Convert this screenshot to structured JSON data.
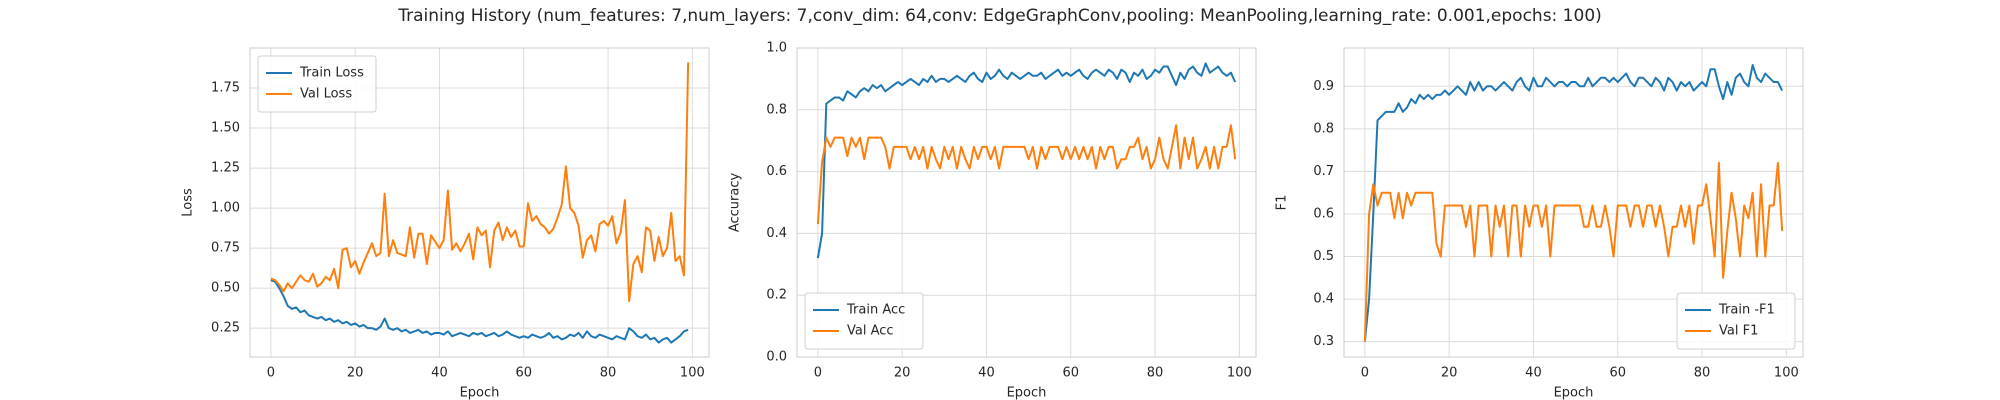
{
  "title": "Training History (num_features: 7,num_layers: 7,conv_dim: 64,conv: EdgeGraphConv,pooling: MeanPooling,learning_rate: 0.001,epochs: 100)",
  "chart_data": [
    {
      "type": "line",
      "xlabel": "Epoch",
      "ylabel": "Loss",
      "legend": "upper left",
      "grid": true,
      "xlim": [
        -4.95,
        103.95
      ],
      "xticks": [
        0,
        20,
        40,
        60,
        80,
        100
      ],
      "ylim": [
        0.07,
        2.0
      ],
      "yticks": [
        0.25,
        {
          "value": 0.5,
          "label": "0.50"
        },
        0.75,
        {
          "value": 1.0,
          "label": "1.00"
        },
        1.25,
        {
          "value": 1.5,
          "label": "1.50"
        },
        1.75
      ],
      "x": [
        0,
        1,
        2,
        3,
        4,
        5,
        6,
        7,
        8,
        9,
        10,
        11,
        12,
        13,
        14,
        15,
        16,
        17,
        18,
        19,
        20,
        21,
        22,
        23,
        24,
        25,
        26,
        27,
        28,
        29,
        30,
        31,
        32,
        33,
        34,
        35,
        36,
        37,
        38,
        39,
        40,
        41,
        42,
        43,
        44,
        45,
        46,
        47,
        48,
        49,
        50,
        51,
        52,
        53,
        54,
        55,
        56,
        57,
        58,
        59,
        60,
        61,
        62,
        63,
        64,
        65,
        66,
        67,
        68,
        69,
        70,
        71,
        72,
        73,
        74,
        75,
        76,
        77,
        78,
        79,
        80,
        81,
        82,
        83,
        84,
        85,
        86,
        87,
        88,
        89,
        90,
        91,
        92,
        93,
        94,
        95,
        96,
        97,
        98,
        99
      ],
      "series": [
        {
          "name": "Train Loss",
          "color": "#1f77b4",
          "values": [
            0.55,
            0.54,
            0.5,
            0.45,
            0.39,
            0.37,
            0.38,
            0.35,
            0.36,
            0.33,
            0.32,
            0.31,
            0.32,
            0.3,
            0.31,
            0.29,
            0.3,
            0.28,
            0.29,
            0.27,
            0.28,
            0.26,
            0.27,
            0.25,
            0.25,
            0.24,
            0.26,
            0.31,
            0.25,
            0.24,
            0.25,
            0.23,
            0.24,
            0.22,
            0.23,
            0.24,
            0.22,
            0.23,
            0.21,
            0.22,
            0.22,
            0.21,
            0.23,
            0.2,
            0.21,
            0.22,
            0.21,
            0.2,
            0.22,
            0.21,
            0.22,
            0.2,
            0.21,
            0.22,
            0.2,
            0.21,
            0.23,
            0.21,
            0.2,
            0.19,
            0.2,
            0.19,
            0.21,
            0.2,
            0.19,
            0.2,
            0.22,
            0.19,
            0.2,
            0.18,
            0.19,
            0.21,
            0.2,
            0.22,
            0.19,
            0.23,
            0.2,
            0.19,
            0.21,
            0.2,
            0.19,
            0.18,
            0.2,
            0.19,
            0.18,
            0.25,
            0.23,
            0.2,
            0.19,
            0.21,
            0.18,
            0.19,
            0.16,
            0.18,
            0.19,
            0.16,
            0.18,
            0.2,
            0.23,
            0.24
          ]
        },
        {
          "name": "Val Loss",
          "color": "#ff7f0e",
          "values": [
            0.56,
            0.55,
            0.52,
            0.48,
            0.53,
            0.5,
            0.54,
            0.58,
            0.55,
            0.54,
            0.59,
            0.51,
            0.53,
            0.57,
            0.55,
            0.62,
            0.5,
            0.74,
            0.75,
            0.63,
            0.67,
            0.59,
            0.66,
            0.72,
            0.78,
            0.7,
            0.72,
            1.09,
            0.7,
            0.8,
            0.72,
            0.71,
            0.7,
            0.88,
            0.69,
            0.84,
            0.84,
            0.65,
            0.83,
            0.79,
            0.75,
            0.8,
            1.11,
            0.74,
            0.78,
            0.73,
            0.78,
            0.84,
            0.68,
            0.88,
            0.83,
            0.86,
            0.63,
            0.86,
            0.91,
            0.8,
            0.88,
            0.82,
            0.86,
            0.76,
            0.76,
            1.03,
            0.92,
            0.95,
            0.9,
            0.88,
            0.84,
            0.87,
            0.94,
            1.02,
            1.26,
            1.0,
            0.97,
            0.89,
            0.69,
            0.8,
            0.83,
            0.73,
            0.9,
            0.92,
            0.89,
            0.95,
            0.78,
            0.85,
            1.05,
            0.42,
            0.65,
            0.7,
            0.6,
            0.88,
            0.86,
            0.67,
            0.82,
            0.7,
            0.75,
            0.97,
            0.67,
            0.7,
            0.58,
            1.91
          ]
        }
      ]
    },
    {
      "type": "line",
      "xlabel": "Epoch",
      "ylabel": "Accuracy",
      "legend": "lower left",
      "grid": true,
      "xlim": [
        -4.95,
        103.95
      ],
      "xticks": [
        0,
        20,
        40,
        60,
        80,
        100
      ],
      "ylim": [
        0,
        1
      ],
      "yticks": [
        {
          "value": 0,
          "label": "0.0"
        },
        0.2,
        0.4,
        0.6,
        0.8,
        {
          "value": 1,
          "label": "1.0"
        }
      ],
      "x": [
        0,
        1,
        2,
        3,
        4,
        5,
        6,
        7,
        8,
        9,
        10,
        11,
        12,
        13,
        14,
        15,
        16,
        17,
        18,
        19,
        20,
        21,
        22,
        23,
        24,
        25,
        26,
        27,
        28,
        29,
        30,
        31,
        32,
        33,
        34,
        35,
        36,
        37,
        38,
        39,
        40,
        41,
        42,
        43,
        44,
        45,
        46,
        47,
        48,
        49,
        50,
        51,
        52,
        53,
        54,
        55,
        56,
        57,
        58,
        59,
        60,
        61,
        62,
        63,
        64,
        65,
        66,
        67,
        68,
        69,
        70,
        71,
        72,
        73,
        74,
        75,
        76,
        77,
        78,
        79,
        80,
        81,
        82,
        83,
        84,
        85,
        86,
        87,
        88,
        89,
        90,
        91,
        92,
        93,
        94,
        95,
        96,
        97,
        98,
        99
      ],
      "series": [
        {
          "name": "Train Acc",
          "color": "#1f77b4",
          "values": [
            0.32,
            0.4,
            0.82,
            0.83,
            0.84,
            0.84,
            0.83,
            0.86,
            0.85,
            0.84,
            0.86,
            0.87,
            0.86,
            0.88,
            0.87,
            0.88,
            0.86,
            0.87,
            0.88,
            0.89,
            0.88,
            0.89,
            0.9,
            0.89,
            0.88,
            0.9,
            0.89,
            0.91,
            0.89,
            0.9,
            0.9,
            0.89,
            0.9,
            0.91,
            0.9,
            0.89,
            0.91,
            0.92,
            0.9,
            0.89,
            0.92,
            0.9,
            0.91,
            0.93,
            0.91,
            0.9,
            0.92,
            0.91,
            0.9,
            0.91,
            0.92,
            0.91,
            0.91,
            0.92,
            0.9,
            0.91,
            0.92,
            0.93,
            0.91,
            0.92,
            0.91,
            0.92,
            0.93,
            0.91,
            0.9,
            0.92,
            0.93,
            0.92,
            0.91,
            0.93,
            0.92,
            0.9,
            0.93,
            0.92,
            0.89,
            0.92,
            0.91,
            0.93,
            0.9,
            0.91,
            0.93,
            0.92,
            0.94,
            0.94,
            0.91,
            0.88,
            0.92,
            0.9,
            0.93,
            0.94,
            0.92,
            0.91,
            0.95,
            0.92,
            0.93,
            0.94,
            0.92,
            0.91,
            0.92,
            0.89
          ]
        },
        {
          "name": "Val Acc",
          "color": "#ff7f0e",
          "values": [
            0.43,
            0.63,
            0.71,
            0.68,
            0.71,
            0.71,
            0.71,
            0.65,
            0.71,
            0.68,
            0.71,
            0.64,
            0.71,
            0.71,
            0.71,
            0.71,
            0.68,
            0.61,
            0.68,
            0.68,
            0.68,
            0.68,
            0.64,
            0.68,
            0.64,
            0.68,
            0.61,
            0.68,
            0.64,
            0.61,
            0.68,
            0.64,
            0.68,
            0.61,
            0.68,
            0.64,
            0.61,
            0.68,
            0.64,
            0.68,
            0.68,
            0.64,
            0.68,
            0.61,
            0.68,
            0.68,
            0.68,
            0.68,
            0.68,
            0.68,
            0.64,
            0.68,
            0.61,
            0.68,
            0.64,
            0.68,
            0.68,
            0.68,
            0.64,
            0.68,
            0.64,
            0.68,
            0.64,
            0.68,
            0.64,
            0.68,
            0.61,
            0.68,
            0.64,
            0.68,
            0.68,
            0.61,
            0.64,
            0.64,
            0.68,
            0.68,
            0.71,
            0.64,
            0.68,
            0.61,
            0.64,
            0.71,
            0.64,
            0.61,
            0.68,
            0.75,
            0.61,
            0.71,
            0.64,
            0.71,
            0.61,
            0.64,
            0.68,
            0.61,
            0.68,
            0.61,
            0.68,
            0.68,
            0.75,
            0.64
          ]
        }
      ]
    },
    {
      "type": "line",
      "xlabel": "Epoch",
      "ylabel": "F1",
      "legend": "lower right",
      "grid": true,
      "xlim": [
        -4.95,
        103.95
      ],
      "xticks": [
        0,
        20,
        40,
        60,
        80,
        100
      ],
      "ylim": [
        0.264,
        0.99
      ],
      "yticks": [
        0.3,
        0.4,
        0.5,
        0.6,
        0.7,
        0.8,
        0.9
      ],
      "x": [
        0,
        1,
        2,
        3,
        4,
        5,
        6,
        7,
        8,
        9,
        10,
        11,
        12,
        13,
        14,
        15,
        16,
        17,
        18,
        19,
        20,
        21,
        22,
        23,
        24,
        25,
        26,
        27,
        28,
        29,
        30,
        31,
        32,
        33,
        34,
        35,
        36,
        37,
        38,
        39,
        40,
        41,
        42,
        43,
        44,
        45,
        46,
        47,
        48,
        49,
        50,
        51,
        52,
        53,
        54,
        55,
        56,
        57,
        58,
        59,
        60,
        61,
        62,
        63,
        64,
        65,
        66,
        67,
        68,
        69,
        70,
        71,
        72,
        73,
        74,
        75,
        76,
        77,
        78,
        79,
        80,
        81,
        82,
        83,
        84,
        85,
        86,
        87,
        88,
        89,
        90,
        91,
        92,
        93,
        94,
        95,
        96,
        97,
        98,
        99
      ],
      "series": [
        {
          "name": "Train -F1",
          "color": "#1f77b4",
          "values": [
            0.3,
            0.4,
            0.6,
            0.82,
            0.83,
            0.84,
            0.84,
            0.84,
            0.86,
            0.84,
            0.85,
            0.87,
            0.86,
            0.88,
            0.87,
            0.88,
            0.87,
            0.88,
            0.88,
            0.89,
            0.88,
            0.89,
            0.9,
            0.89,
            0.88,
            0.91,
            0.89,
            0.91,
            0.89,
            0.9,
            0.9,
            0.89,
            0.9,
            0.91,
            0.9,
            0.89,
            0.91,
            0.92,
            0.9,
            0.89,
            0.92,
            0.9,
            0.9,
            0.92,
            0.91,
            0.9,
            0.91,
            0.91,
            0.9,
            0.91,
            0.91,
            0.9,
            0.9,
            0.92,
            0.9,
            0.91,
            0.92,
            0.92,
            0.91,
            0.92,
            0.91,
            0.92,
            0.93,
            0.91,
            0.9,
            0.92,
            0.92,
            0.91,
            0.9,
            0.92,
            0.91,
            0.89,
            0.92,
            0.91,
            0.89,
            0.91,
            0.9,
            0.91,
            0.89,
            0.9,
            0.91,
            0.9,
            0.94,
            0.94,
            0.9,
            0.87,
            0.91,
            0.88,
            0.92,
            0.93,
            0.91,
            0.9,
            0.95,
            0.92,
            0.91,
            0.93,
            0.92,
            0.91,
            0.91,
            0.89
          ]
        },
        {
          "name": "Val F1",
          "color": "#ff7f0e",
          "values": [
            0.3,
            0.6,
            0.67,
            0.62,
            0.65,
            0.65,
            0.65,
            0.59,
            0.65,
            0.59,
            0.65,
            0.62,
            0.65,
            0.65,
            0.65,
            0.65,
            0.65,
            0.53,
            0.5,
            0.62,
            0.62,
            0.62,
            0.62,
            0.62,
            0.57,
            0.62,
            0.5,
            0.62,
            0.62,
            0.62,
            0.5,
            0.62,
            0.57,
            0.62,
            0.5,
            0.62,
            0.62,
            0.5,
            0.62,
            0.57,
            0.62,
            0.62,
            0.57,
            0.62,
            0.5,
            0.62,
            0.62,
            0.62,
            0.62,
            0.62,
            0.62,
            0.62,
            0.57,
            0.57,
            0.62,
            0.57,
            0.57,
            0.62,
            0.57,
            0.5,
            0.62,
            0.62,
            0.62,
            0.57,
            0.62,
            0.62,
            0.57,
            0.62,
            0.62,
            0.57,
            0.62,
            0.57,
            0.5,
            0.57,
            0.57,
            0.62,
            0.57,
            0.62,
            0.53,
            0.62,
            0.62,
            0.67,
            0.59,
            0.5,
            0.72,
            0.45,
            0.56,
            0.65,
            0.59,
            0.5,
            0.62,
            0.59,
            0.65,
            0.5,
            0.67,
            0.5,
            0.62,
            0.62,
            0.72,
            0.56
          ]
        }
      ]
    }
  ]
}
